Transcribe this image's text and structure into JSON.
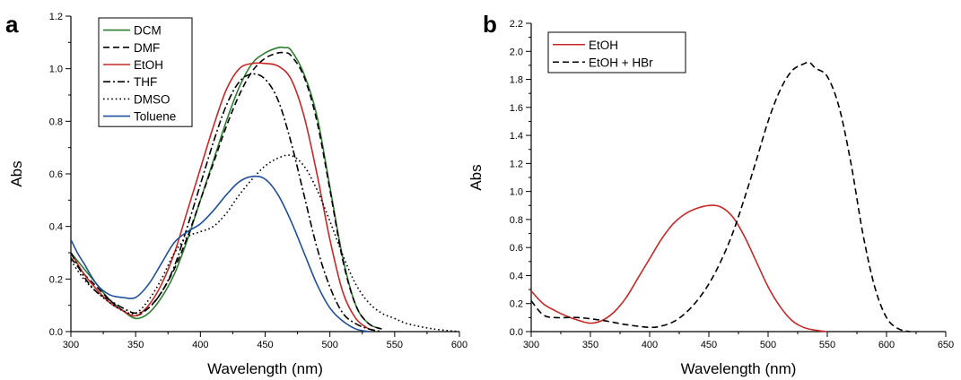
{
  "chart_data": [
    {
      "panel": "a",
      "type": "line",
      "xlabel": "Wavelength (nm)",
      "ylabel": "Abs",
      "xlim": [
        300,
        600
      ],
      "ylim": [
        0.0,
        1.2
      ],
      "xticks": [
        300,
        350,
        400,
        450,
        500,
        550,
        600
      ],
      "yticks": [
        0.0,
        0.2,
        0.4,
        0.6,
        0.8,
        1.0,
        1.2
      ],
      "xtick_labels": [
        "300",
        "350",
        "400",
        "450",
        "500",
        "550",
        "600"
      ],
      "ytick_labels": [
        "0.0",
        "0.2",
        "0.4",
        "0.6",
        "0.8",
        "1.0",
        "1.2"
      ],
      "grid": false,
      "legend_position": "top-left",
      "series": [
        {
          "name": "DCM",
          "color": "#2e7d32",
          "dash": "solid",
          "x": [
            300,
            310,
            320,
            330,
            340,
            350,
            360,
            370,
            380,
            390,
            400,
            410,
            420,
            430,
            440,
            450,
            460,
            465,
            470,
            480,
            490,
            500,
            510,
            520,
            530,
            540
          ],
          "y": [
            0.3,
            0.24,
            0.18,
            0.12,
            0.08,
            0.05,
            0.07,
            0.13,
            0.22,
            0.35,
            0.5,
            0.65,
            0.8,
            0.93,
            1.02,
            1.06,
            1.08,
            1.08,
            1.07,
            0.98,
            0.82,
            0.55,
            0.28,
            0.1,
            0.03,
            0.01
          ]
        },
        {
          "name": "DMF",
          "color": "#000000",
          "dash": "dashed",
          "x": [
            300,
            310,
            320,
            330,
            340,
            350,
            360,
            370,
            380,
            390,
            400,
            410,
            420,
            430,
            440,
            450,
            460,
            465,
            470,
            480,
            490,
            500,
            510,
            520,
            530,
            540
          ],
          "y": [
            0.28,
            0.22,
            0.17,
            0.12,
            0.08,
            0.06,
            0.09,
            0.15,
            0.24,
            0.36,
            0.5,
            0.64,
            0.78,
            0.9,
            0.99,
            1.04,
            1.06,
            1.06,
            1.05,
            0.97,
            0.8,
            0.54,
            0.27,
            0.1,
            0.03,
            0.01
          ]
        },
        {
          "name": "EtOH",
          "color": "#c62828",
          "dash": "solid",
          "x": [
            300,
            310,
            320,
            330,
            340,
            350,
            360,
            370,
            380,
            390,
            400,
            410,
            420,
            430,
            440,
            450,
            460,
            470,
            480,
            490,
            500,
            510,
            520,
            530
          ],
          "y": [
            0.3,
            0.22,
            0.16,
            0.11,
            0.08,
            0.06,
            0.1,
            0.18,
            0.3,
            0.46,
            0.62,
            0.78,
            0.92,
            1.0,
            1.02,
            1.02,
            1.01,
            0.96,
            0.82,
            0.6,
            0.35,
            0.15,
            0.05,
            0.01
          ]
        },
        {
          "name": "THF",
          "color": "#000000",
          "dash": "dashdot",
          "x": [
            300,
            310,
            320,
            330,
            340,
            350,
            360,
            370,
            380,
            390,
            400,
            410,
            420,
            430,
            440,
            450,
            460,
            470,
            480,
            490,
            500,
            510,
            520,
            530,
            540
          ],
          "y": [
            0.3,
            0.21,
            0.15,
            0.12,
            0.09,
            0.07,
            0.09,
            0.15,
            0.25,
            0.4,
            0.56,
            0.72,
            0.86,
            0.95,
            0.98,
            0.96,
            0.88,
            0.72,
            0.52,
            0.32,
            0.17,
            0.07,
            0.03,
            0.01,
            0.0
          ]
        },
        {
          "name": "DMSO",
          "color": "#000000",
          "dash": "dotted",
          "x": [
            300,
            310,
            320,
            330,
            340,
            350,
            360,
            370,
            380,
            390,
            400,
            410,
            420,
            430,
            440,
            450,
            460,
            470,
            480,
            490,
            500,
            510,
            520,
            530,
            540,
            550,
            560,
            580,
            600
          ],
          "y": [
            0.27,
            0.2,
            0.15,
            0.11,
            0.08,
            0.07,
            0.12,
            0.2,
            0.3,
            0.36,
            0.38,
            0.4,
            0.45,
            0.52,
            0.58,
            0.63,
            0.66,
            0.67,
            0.63,
            0.54,
            0.42,
            0.29,
            0.18,
            0.11,
            0.07,
            0.05,
            0.03,
            0.01,
            0.0
          ]
        },
        {
          "name": "Toluene",
          "color": "#1f4e9c",
          "dash": "solid",
          "x": [
            300,
            305,
            310,
            320,
            330,
            340,
            350,
            360,
            370,
            380,
            390,
            400,
            410,
            420,
            430,
            440,
            450,
            460,
            470,
            480,
            490,
            500,
            510,
            520,
            530
          ],
          "y": [
            0.35,
            0.3,
            0.26,
            0.18,
            0.14,
            0.13,
            0.13,
            0.18,
            0.26,
            0.34,
            0.38,
            0.41,
            0.46,
            0.52,
            0.57,
            0.59,
            0.58,
            0.52,
            0.42,
            0.3,
            0.18,
            0.09,
            0.04,
            0.01,
            0.0
          ]
        }
      ]
    },
    {
      "panel": "b",
      "type": "line",
      "xlabel": "Wavelength (nm)",
      "ylabel": "Abs",
      "xlim": [
        300,
        650
      ],
      "ylim": [
        0.0,
        2.2
      ],
      "xticks": [
        300,
        350,
        400,
        450,
        500,
        550,
        600,
        650
      ],
      "yticks": [
        0.0,
        0.2,
        0.4,
        0.6,
        0.8,
        1.0,
        1.2,
        1.4,
        1.6,
        1.8,
        2.0,
        2.2
      ],
      "xtick_labels": [
        "300",
        "350",
        "400",
        "450",
        "500",
        "550",
        "600",
        "650"
      ],
      "ytick_labels": [
        "0.0",
        "0.2",
        "0.4",
        "0.6",
        "0.8",
        "1.0",
        "1.2",
        "1.4",
        "1.6",
        "1.8",
        "2.0",
        "2.2"
      ],
      "grid": false,
      "legend_position": "top-left",
      "series": [
        {
          "name": "EtOH",
          "color": "#c62828",
          "dash": "solid",
          "x": [
            300,
            310,
            320,
            330,
            340,
            350,
            360,
            370,
            380,
            390,
            400,
            410,
            420,
            430,
            440,
            450,
            460,
            470,
            480,
            490,
            500,
            510,
            520,
            530,
            540,
            550
          ],
          "y": [
            0.29,
            0.2,
            0.15,
            0.11,
            0.08,
            0.06,
            0.08,
            0.14,
            0.24,
            0.38,
            0.52,
            0.66,
            0.77,
            0.84,
            0.88,
            0.9,
            0.89,
            0.82,
            0.68,
            0.5,
            0.32,
            0.18,
            0.08,
            0.03,
            0.01,
            0.0
          ]
        },
        {
          "name": "EtOH + HBr",
          "color": "#000000",
          "dash": "dashed",
          "x": [
            300,
            310,
            320,
            340,
            360,
            380,
            400,
            410,
            420,
            430,
            440,
            450,
            460,
            470,
            480,
            490,
            500,
            510,
            520,
            530,
            535,
            540,
            550,
            560,
            570,
            580,
            590,
            600,
            610,
            620
          ],
          "y": [
            0.22,
            0.12,
            0.1,
            0.1,
            0.08,
            0.05,
            0.03,
            0.04,
            0.07,
            0.13,
            0.22,
            0.34,
            0.5,
            0.7,
            0.95,
            1.22,
            1.5,
            1.72,
            1.86,
            1.91,
            1.92,
            1.88,
            1.82,
            1.6,
            1.2,
            0.7,
            0.32,
            0.1,
            0.02,
            0.0
          ]
        }
      ]
    }
  ]
}
